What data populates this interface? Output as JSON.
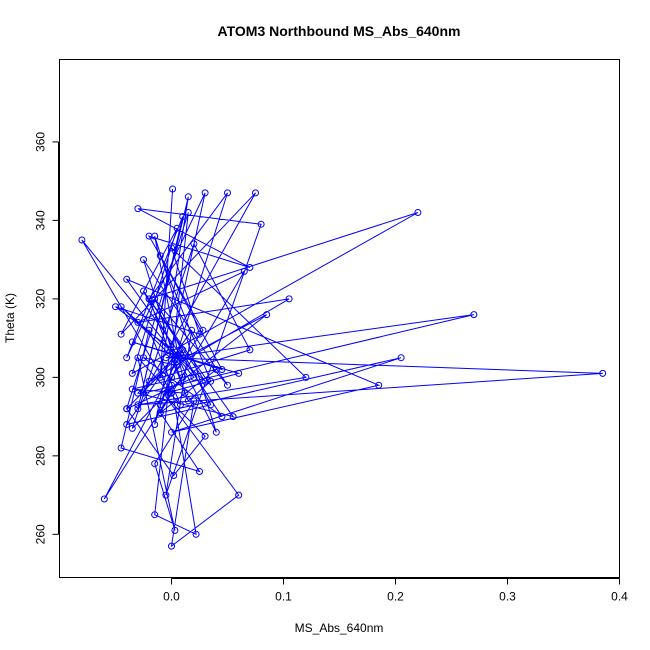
{
  "chart_data": {
    "type": "line",
    "title": "ATOM3 Northbound MS_Abs_640nm",
    "xlabel": "MS_Abs_640nm",
    "ylabel": "Theta (K)",
    "xlim": [
      -0.1,
      0.4
    ],
    "ylim": [
      249,
      381
    ],
    "xticks": [
      0.0,
      0.1,
      0.2,
      0.3,
      0.4
    ],
    "xtick_labels": [
      "0.0",
      "0.1",
      "0.2",
      "0.3",
      "0.4"
    ],
    "yticks": [
      260,
      280,
      300,
      320,
      340,
      360
    ],
    "ytick_labels": [
      "260",
      "280",
      "300",
      "320",
      "340",
      "360"
    ],
    "color": "#0000ff",
    "grid": false,
    "series": [
      {
        "x": [
          0.001,
          -0.01,
          0.015,
          -0.03,
          0.01,
          -0.04,
          0.03,
          -0.015,
          0.05,
          -0.02,
          0.22,
          -0.035,
          0.005,
          -0.045,
          0.075,
          -0.025,
          0.27,
          -0.005,
          0.385,
          -0.03,
          0.12,
          0.0,
          0.025,
          -0.05,
          0.01,
          -0.04,
          0.185,
          0.0,
          0.205,
          -0.01,
          0.065,
          -0.03,
          0.105,
          -0.02,
          0.07,
          0.02,
          -0.035,
          0.01,
          -0.015,
          0.04,
          -0.025,
          0.03,
          -0.045,
          0.005,
          0.085,
          -0.005,
          0.06,
          -0.035,
          0.045,
          -0.01,
          0.035,
          0.015,
          -0.02,
          0.055,
          -0.03,
          0.01,
          -0.06,
          0.0,
          -0.08,
          0.02,
          -0.04,
          0.002,
          0.03,
          -0.005,
          0.06,
          0.0,
          0.02,
          -0.015,
          0.003,
          -0.03,
          0.008,
          -0.02,
          -0.045,
          0.025,
          -0.01,
          0.04,
          -0.035,
          0.012,
          -0.025,
          0.05,
          -0.015,
          0.035,
          -0.04,
          0.018,
          -0.005,
          0.08,
          -0.03,
          0.07,
          -0.02,
          0.028,
          0.0,
          -0.01,
          0.005,
          -0.025,
          0.045,
          0.008,
          -0.04,
          0.015,
          -0.015,
          0.022,
          0.0
        ],
        "y": [
          348,
          300,
          346,
          292,
          341,
          305,
          347,
          288,
          347,
          320,
          342,
          301,
          338,
          311,
          347,
          296,
          316,
          305,
          301,
          293,
          300,
          333,
          311,
          318,
          305,
          325,
          298,
          286,
          305,
          291,
          327,
          314,
          320,
          299,
          307,
          334,
          287,
          300,
          336,
          286,
          322,
          299,
          318,
          304,
          316,
          296,
          301,
          309,
          302,
          331,
          299,
          294,
          320,
          290,
          296,
          307,
          269,
          296,
          335,
          300,
          292,
          275,
          285,
          295,
          270,
          257,
          294,
          278,
          261,
          305,
          293,
          312,
          282,
          276,
          291,
          302,
          297,
          296,
          330,
          298,
          320,
          293,
          288,
          312,
          270,
          339,
          343,
          328,
          336,
          312,
          300,
          293,
          303,
          305,
          290,
          306,
          292,
          342,
          265,
          260,
          298
        ]
      }
    ]
  }
}
